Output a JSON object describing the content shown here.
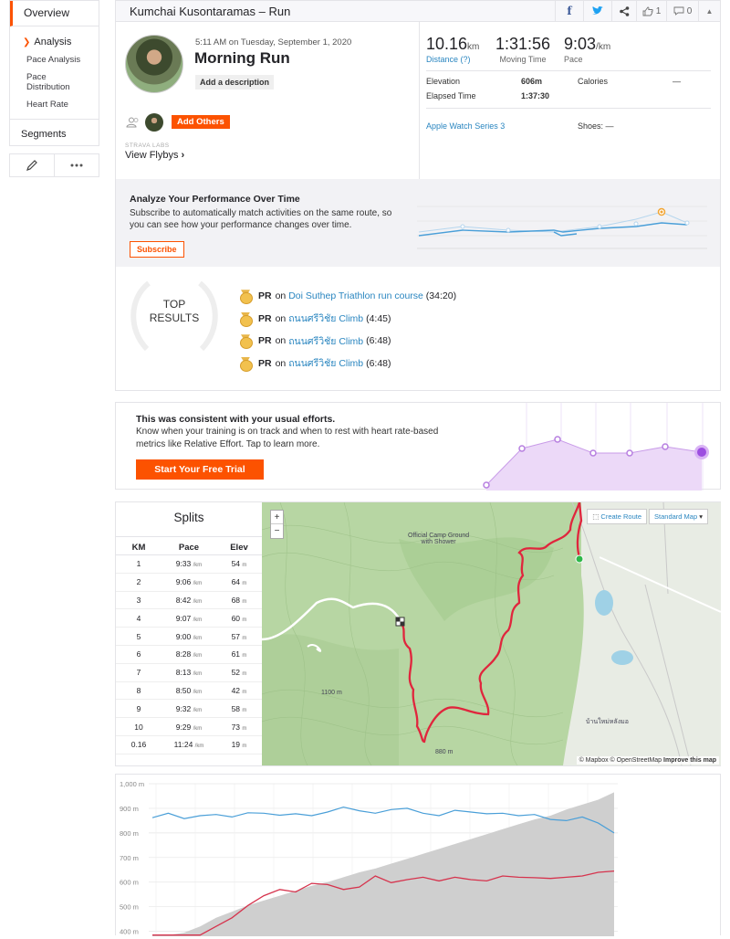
{
  "sidebar": {
    "overview": "Overview",
    "analysis": "Analysis",
    "items": [
      "Pace Analysis",
      "Pace\nDistribution",
      "Heart Rate"
    ],
    "segments": "Segments"
  },
  "header": {
    "title": "Kumchai Kusontaramas – Run",
    "kudos_count": "1",
    "comment_count": "0"
  },
  "activity": {
    "date": "5:11 AM on Tuesday, September 1, 2020",
    "title": "Morning Run",
    "add_description": "Add a description",
    "add_others": "Add Others",
    "strava_labs": "STRAVA LABS",
    "view_flybys": "View Flybys",
    "view_flybys_arrow": "›"
  },
  "stats": {
    "distance_value": "10.16",
    "distance_unit": "km",
    "distance_label": "Distance (?)",
    "moving_time_value": "1:31:56",
    "moving_time_label": "Moving Time",
    "pace_value": "9:03",
    "pace_unit": "/km",
    "pace_label": "Pace",
    "elevation_label": "Elevation",
    "elevation_value": "606m",
    "calories_label": "Calories",
    "calories_value": "—",
    "elapsed_label": "Elapsed Time",
    "elapsed_value": "1:37:30",
    "device": "Apple Watch Series 3",
    "shoes": "Shoes: —"
  },
  "analyze": {
    "title": "Analyze Your Performance Over Time",
    "text": "Subscribe to automatically match activities on the same route, so you can see how your performance changes over time.",
    "button": "Subscribe"
  },
  "top_results": {
    "title_line1": "TOP",
    "title_line2": "RESULTS",
    "items": [
      {
        "badge": "PR",
        "on": "on",
        "segment": "Doi Suthep Triathlon run course",
        "time": "(34:20)"
      },
      {
        "badge": "PR",
        "on": "on",
        "segment": "ถนนศรีวิชัย Climb",
        "time": "(4:45)"
      },
      {
        "badge": "PR",
        "on": "on",
        "segment": "ถนนศรีวิชัย Climb",
        "time": "(6:48)"
      },
      {
        "badge": "PR",
        "on": "on",
        "segment": "ถนนศรีวิชัย Climb",
        "time": "(6:48)"
      }
    ]
  },
  "effort": {
    "title": "This was consistent with your usual efforts.",
    "text": "Know when your training is on track and when to rest with heart rate-based metrics like Relative Effort. Tap to learn more.",
    "button": "Start Your Free Trial"
  },
  "splits": {
    "title": "Splits",
    "headers": [
      "KM",
      "Pace",
      "Elev"
    ],
    "pace_unit": "/km",
    "elev_unit": "m",
    "rows": [
      {
        "km": "1",
        "pace": "9:33",
        "elev": "54"
      },
      {
        "km": "2",
        "pace": "9:06",
        "elev": "64"
      },
      {
        "km": "3",
        "pace": "8:42",
        "elev": "68"
      },
      {
        "km": "4",
        "pace": "9:07",
        "elev": "60"
      },
      {
        "km": "5",
        "pace": "9:00",
        "elev": "57"
      },
      {
        "km": "6",
        "pace": "8:28",
        "elev": "61"
      },
      {
        "km": "7",
        "pace": "8:13",
        "elev": "52"
      },
      {
        "km": "8",
        "pace": "8:50",
        "elev": "42"
      },
      {
        "km": "9",
        "pace": "9:32",
        "elev": "58"
      },
      {
        "km": "10",
        "pace": "9:29",
        "elev": "73"
      },
      {
        "km": "0.16",
        "pace": "11:24",
        "elev": "19"
      }
    ]
  },
  "map": {
    "zoom_in": "+",
    "zoom_out": "−",
    "create_route": "Create Route",
    "map_type": "Standard Map",
    "attribution_mapbox": "© Mapbox",
    "attribution_osm": "© OpenStreetMap",
    "improve": "Improve this map",
    "label_campground": "Official Camp Ground\nwith Shower",
    "label_thai_village": "บ้านใหม่หลังมอ",
    "label_1100m": "1100 m",
    "label_880m": "880 m"
  },
  "elevation_chart": {
    "y_ticks": [
      "1,000 m",
      "900 m",
      "800 m",
      "700 m",
      "600 m",
      "500 m",
      "400 m"
    ],
    "colors": {
      "pace": "#4a9fd8",
      "heart_rate": "#d6334d",
      "elevation_fill": "#cfcfcf"
    }
  },
  "chart_data": {
    "type": "area",
    "ylabel": "",
    "ylim": [
      380,
      1000
    ],
    "y_ticks": [
      400,
      500,
      600,
      700,
      800,
      900,
      1000
    ],
    "grid": true,
    "series": [
      {
        "values": [
          385,
          385,
          395,
          420,
          455,
          480,
          505,
          525,
          545,
          565,
          585,
          600,
          620,
          640,
          655,
          675,
          695,
          715,
          735,
          755,
          775,
          795,
          815,
          835,
          855,
          870,
          895,
          915,
          935,
          965
        ]
      },
      {
        "values": [
          862,
          880,
          858,
          870,
          875,
          865,
          882,
          880,
          872,
          878,
          870,
          885,
          905,
          890,
          880,
          895,
          900,
          880,
          870,
          892,
          885,
          878,
          880,
          870,
          875,
          855,
          850,
          865,
          840,
          800
        ]
      },
      {
        "values": [
          385,
          385,
          385,
          385,
          420,
          455,
          505,
          545,
          570,
          560,
          595,
          590,
          570,
          580,
          625,
          598,
          610,
          620,
          605,
          620,
          610,
          605,
          625,
          620,
          618,
          615,
          620,
          625,
          640,
          645
        ]
      }
    ]
  }
}
